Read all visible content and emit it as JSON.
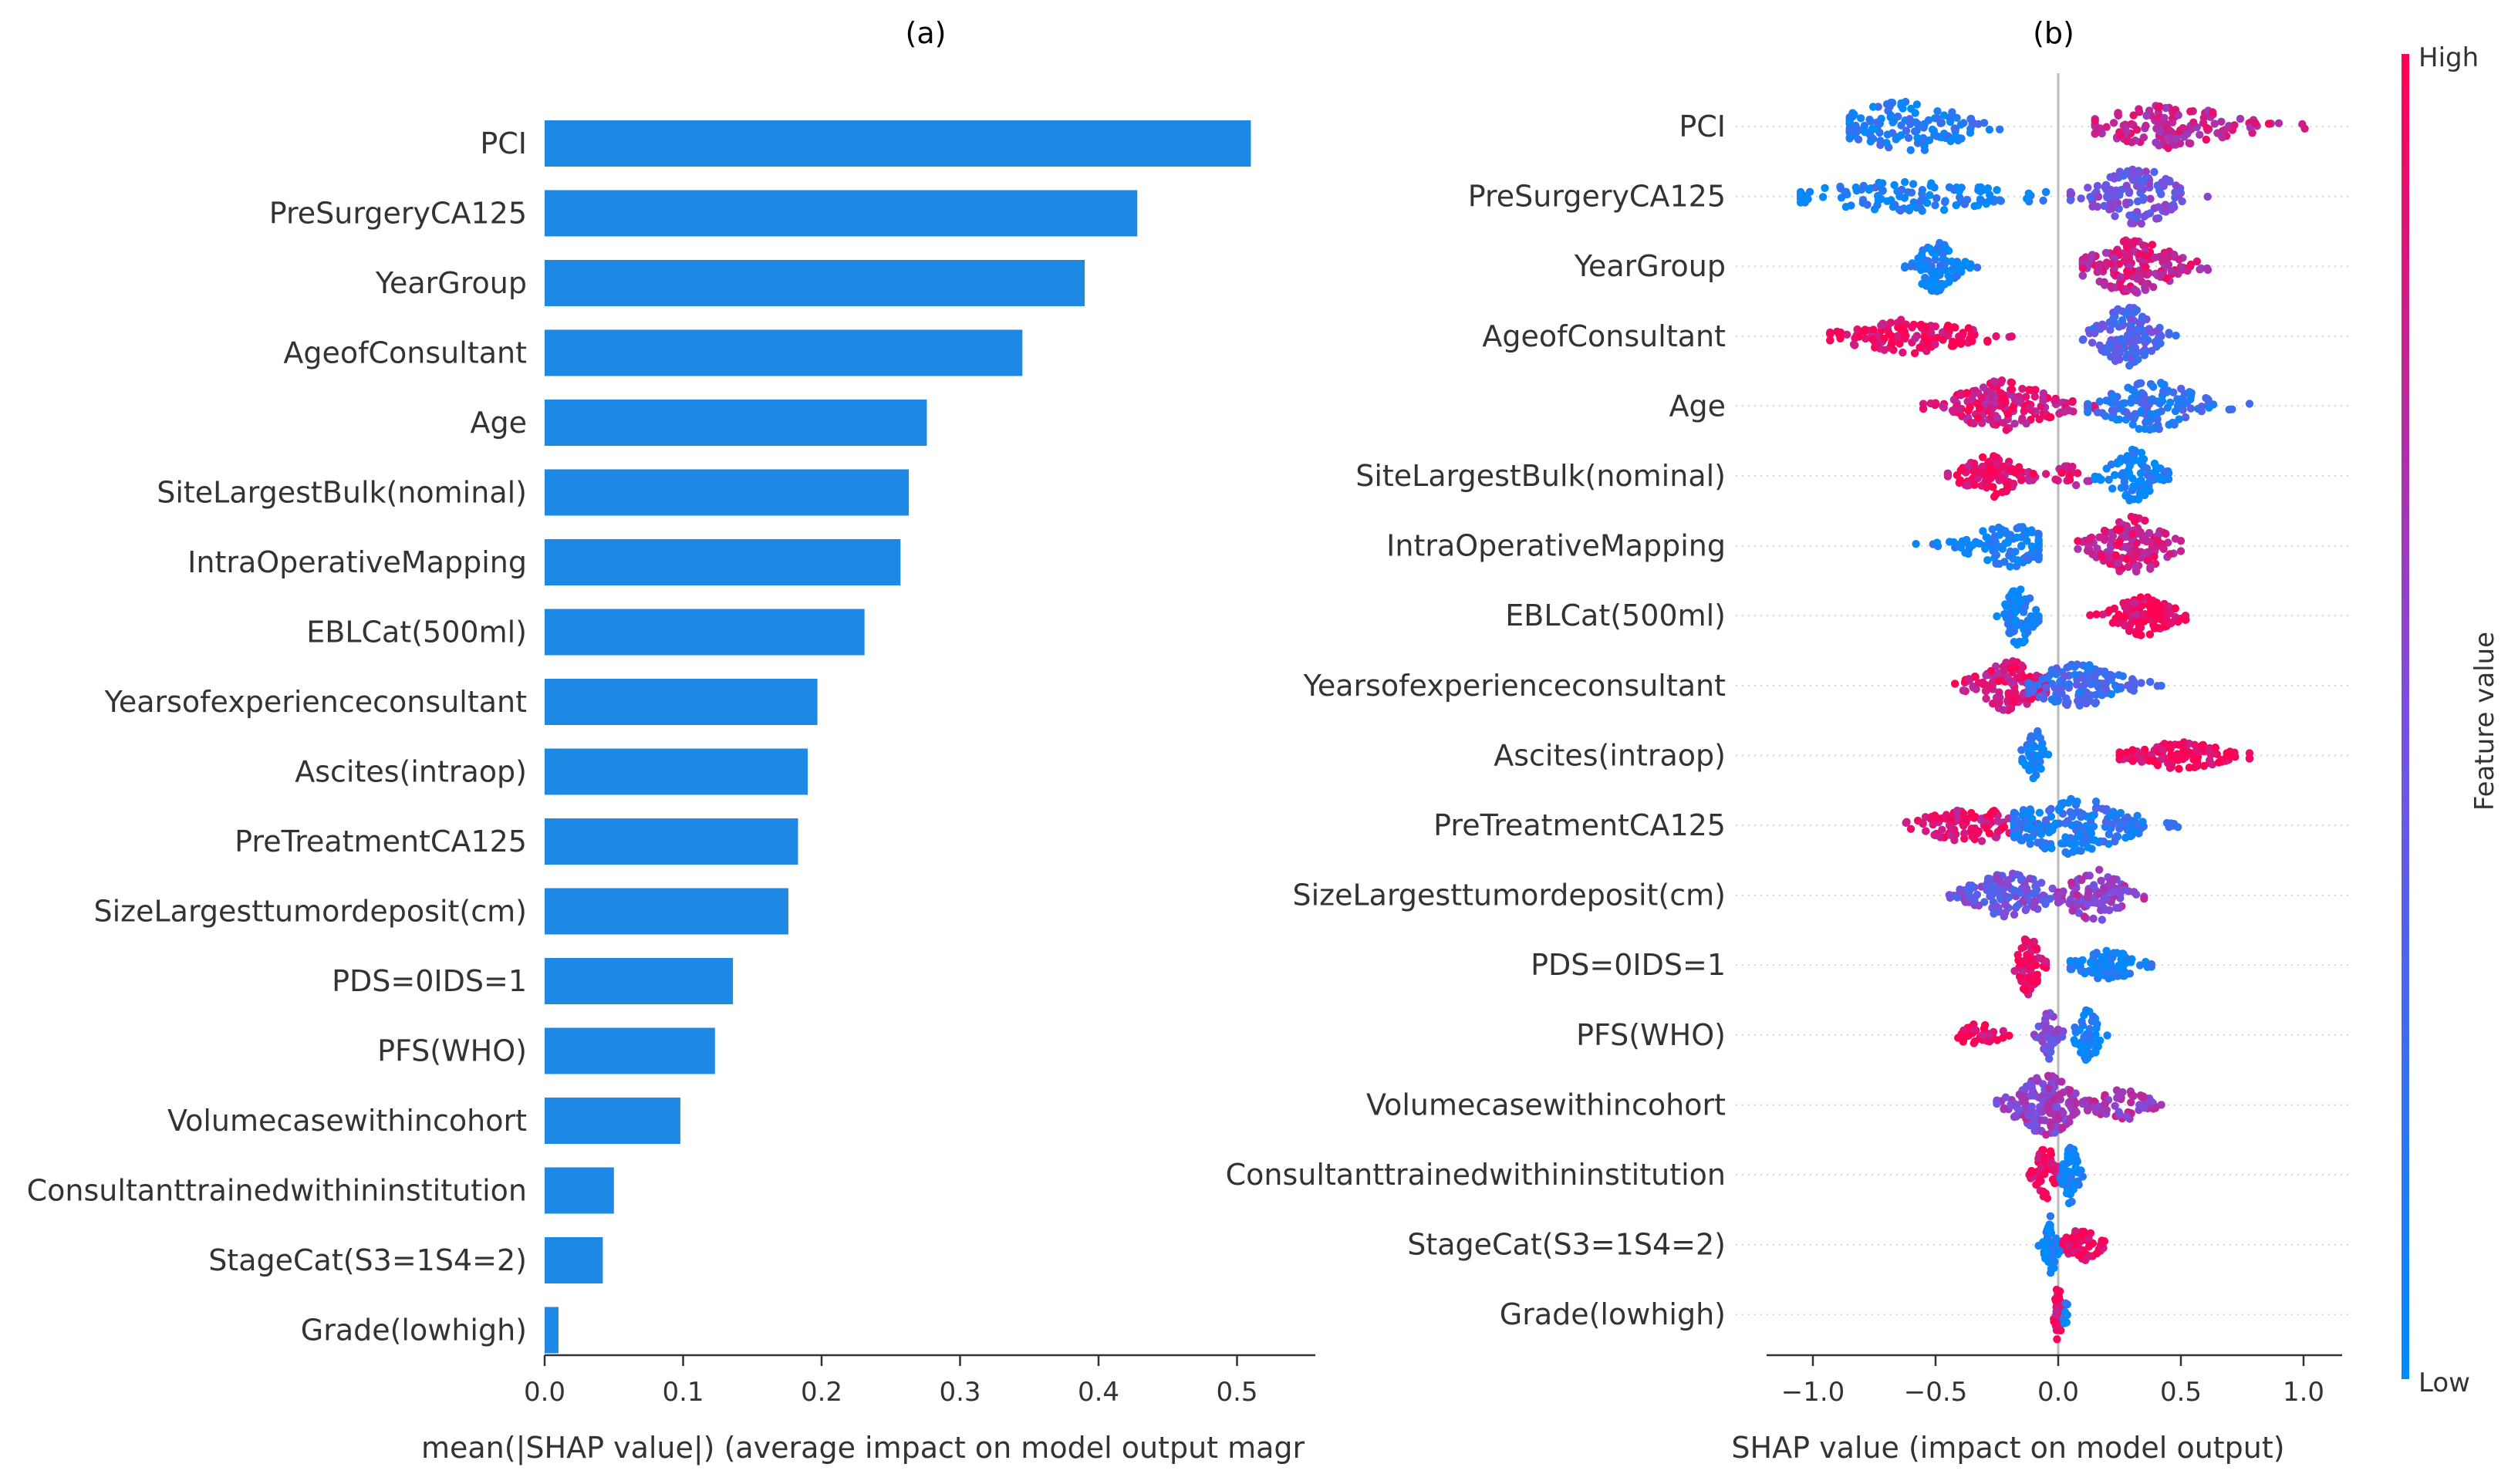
{
  "chart_data": [
    {
      "type": "bar",
      "orientation": "horizontal",
      "title": "(a)",
      "xlabel": "mean(|SHAP value|) (average impact on model output magr",
      "ylabel": "",
      "xlim": [
        0,
        0.56
      ],
      "xticks": [
        "0.0",
        "0.1",
        "0.2",
        "0.3",
        "0.4",
        "0.5"
      ],
      "bar_color": "#1E88E5",
      "categories": [
        "PCI",
        "PreSurgeryCA125",
        "YearGroup",
        "AgeofConsultant",
        "Age",
        "SiteLargestBulk(nominal)",
        "IntraOperativeMapping",
        "EBLCat(500ml)",
        "Yearsofexperienceconsultant",
        "Ascites(intraop)",
        "PreTreatmentCA125",
        "SizeLargesttumordeposit(cm)",
        "PDS=0IDS=1",
        "PFS(WHO)",
        "Volumecasewithincohort",
        "Consultanttrainedwithininstitution",
        "StageCat(S3=1S4=2)",
        "Grade(lowhigh)"
      ],
      "values": [
        0.51,
        0.428,
        0.39,
        0.345,
        0.276,
        0.263,
        0.257,
        0.231,
        0.197,
        0.19,
        0.183,
        0.176,
        0.136,
        0.123,
        0.098,
        0.05,
        0.042,
        0.01
      ]
    },
    {
      "type": "scatter",
      "subtype": "beeswarm",
      "title": "(b)",
      "xlabel": "SHAP value (impact on model output)",
      "ylabel": "",
      "xlim": [
        -1.15,
        1.12
      ],
      "xticks": [
        "−1.0",
        "−0.5",
        "0.0",
        "0.5",
        "1.0"
      ],
      "xtick_values": [
        -1.0,
        -0.5,
        0.0,
        0.5,
        1.0
      ],
      "grid": false,
      "colorbar": {
        "label": "Feature value",
        "high_label": "High",
        "low_label": "Low",
        "high_color": "#FF0052",
        "low_color": "#008BFB"
      },
      "features": [
        {
          "name": "PCI",
          "clusters": [
            {
              "min": -0.85,
              "max": 0.08,
              "center": -0.62,
              "spread": 0.18,
              "n": 130,
              "width": 0.85,
              "value": 0.12
            },
            {
              "min": 0.15,
              "max": 1.12,
              "center": 0.45,
              "spread": 0.2,
              "n": 150,
              "width": 0.7,
              "value": 0.78
            }
          ]
        },
        {
          "name": "PreSurgeryCA125",
          "clusters": [
            {
              "min": -1.05,
              "max": -0.05,
              "center": -0.6,
              "spread": 0.3,
              "n": 120,
              "width": 0.45,
              "value": 0.08
            },
            {
              "min": 0.05,
              "max": 0.85,
              "center": 0.32,
              "spread": 0.12,
              "n": 130,
              "width": 0.95,
              "value": 0.45
            }
          ]
        },
        {
          "name": "YearGroup",
          "clusters": [
            {
              "min": -0.72,
              "max": -0.33,
              "center": -0.5,
              "spread": 0.06,
              "n": 90,
              "width": 0.85,
              "value": 0.05
            },
            {
              "min": 0.1,
              "max": 0.62,
              "center": 0.3,
              "spread": 0.13,
              "n": 170,
              "width": 0.9,
              "value": 0.8
            }
          ]
        },
        {
          "name": "AgeofConsultant",
          "clusters": [
            {
              "min": -0.93,
              "max": -0.15,
              "center": -0.6,
              "spread": 0.18,
              "n": 130,
              "width": 0.55,
              "value": 0.93
            },
            {
              "min": 0.1,
              "max": 0.48,
              "center": 0.28,
              "spread": 0.08,
              "n": 130,
              "width": 1.0,
              "value": 0.35
            }
          ]
        },
        {
          "name": "Age",
          "clusters": [
            {
              "min": -0.55,
              "max": 0.15,
              "center": -0.22,
              "spread": 0.14,
              "n": 170,
              "width": 0.85,
              "value": 0.85
            },
            {
              "min": 0.12,
              "max": 0.78,
              "center": 0.38,
              "spread": 0.14,
              "n": 140,
              "width": 0.8,
              "value": 0.2
            }
          ]
        },
        {
          "name": "SiteLargestBulk(nominal)",
          "clusters": [
            {
              "min": -0.45,
              "max": -0.05,
              "center": -0.27,
              "spread": 0.08,
              "n": 100,
              "width": 0.7,
              "value": 0.9
            },
            {
              "min": -0.05,
              "max": 0.15,
              "center": 0.05,
              "spread": 0.06,
              "n": 20,
              "width": 0.3,
              "value": 0.85
            },
            {
              "min": 0.15,
              "max": 0.45,
              "center": 0.3,
              "spread": 0.07,
              "n": 90,
              "width": 0.9,
              "value": 0.05
            }
          ]
        },
        {
          "name": "IntraOperativeMapping",
          "clusters": [
            {
              "min": -0.58,
              "max": -0.08,
              "center": -0.2,
              "spread": 0.12,
              "n": 110,
              "width": 0.7,
              "value": 0.1
            },
            {
              "min": 0.08,
              "max": 0.5,
              "center": 0.3,
              "spread": 0.1,
              "n": 150,
              "width": 1.0,
              "value": 0.82
            }
          ]
        },
        {
          "name": "EBLCat(500ml)",
          "clusters": [
            {
              "min": -0.25,
              "max": -0.08,
              "center": -0.16,
              "spread": 0.04,
              "n": 80,
              "width": 1.0,
              "value": 0.05
            },
            {
              "min": 0.13,
              "max": 0.52,
              "center": 0.35,
              "spread": 0.08,
              "n": 110,
              "width": 0.65,
              "value": 0.93
            }
          ]
        },
        {
          "name": "Yearsofexperienceconsultant",
          "clusters": [
            {
              "min": -0.45,
              "max": -0.05,
              "center": -0.2,
              "spread": 0.09,
              "n": 130,
              "width": 0.85,
              "value": 0.88
            },
            {
              "min": -0.12,
              "max": 0.42,
              "center": 0.08,
              "spread": 0.13,
              "n": 140,
              "width": 0.7,
              "value": 0.25
            }
          ]
        },
        {
          "name": "Ascites(intraop)",
          "clusters": [
            {
              "min": -0.15,
              "max": -0.04,
              "center": -0.1,
              "spread": 0.025,
              "n": 50,
              "width": 1.0,
              "value": 0.05
            },
            {
              "min": 0.25,
              "max": 0.78,
              "center": 0.5,
              "spread": 0.13,
              "n": 110,
              "width": 0.4,
              "value": 0.95
            }
          ]
        },
        {
          "name": "PreTreatmentCA125",
          "clusters": [
            {
              "min": -0.62,
              "max": -0.05,
              "center": -0.35,
              "spread": 0.14,
              "n": 120,
              "width": 0.55,
              "value": 0.9
            },
            {
              "min": -0.18,
              "max": 0.68,
              "center": 0.05,
              "spread": 0.17,
              "n": 200,
              "width": 0.95,
              "value": 0.15
            }
          ]
        },
        {
          "name": "SizeLargesttumordeposit(cm)",
          "clusters": [
            {
              "min": -0.48,
              "max": 0.02,
              "center": -0.2,
              "spread": 0.12,
              "n": 130,
              "width": 0.7,
              "value": 0.45
            },
            {
              "min": 0.0,
              "max": 0.35,
              "center": 0.15,
              "spread": 0.09,
              "n": 100,
              "width": 0.85,
              "value": 0.6
            }
          ]
        },
        {
          "name": "PDS=0IDS=1",
          "clusters": [
            {
              "min": -0.2,
              "max": -0.05,
              "center": -0.12,
              "spread": 0.03,
              "n": 70,
              "width": 1.0,
              "value": 0.95
            },
            {
              "min": 0.05,
              "max": 0.38,
              "center": 0.2,
              "spread": 0.08,
              "n": 90,
              "width": 0.45,
              "value": 0.06
            }
          ]
        },
        {
          "name": "PFS(WHO)",
          "clusters": [
            {
              "min": -0.45,
              "max": -0.2,
              "center": -0.33,
              "spread": 0.06,
              "n": 40,
              "width": 0.35,
              "value": 0.95
            },
            {
              "min": -0.1,
              "max": 0.02,
              "center": -0.04,
              "spread": 0.025,
              "n": 45,
              "width": 0.8,
              "value": 0.5
            },
            {
              "min": 0.05,
              "max": 0.2,
              "center": 0.12,
              "spread": 0.03,
              "n": 50,
              "width": 1.0,
              "value": 0.05
            }
          ]
        },
        {
          "name": "Volumecasewithincohort",
          "clusters": [
            {
              "min": -0.25,
              "max": 0.15,
              "center": -0.05,
              "spread": 0.09,
              "n": 170,
              "width": 1.0,
              "value": 0.6
            },
            {
              "min": 0.1,
              "max": 0.42,
              "center": 0.25,
              "spread": 0.08,
              "n": 60,
              "width": 0.5,
              "value": 0.65
            }
          ]
        },
        {
          "name": "Consultanttrainedwithininstitution",
          "clusters": [
            {
              "min": -0.12,
              "max": 0.0,
              "center": -0.05,
              "spread": 0.03,
              "n": 60,
              "width": 1.0,
              "value": 0.95
            },
            {
              "min": 0.0,
              "max": 0.1,
              "center": 0.05,
              "spread": 0.025,
              "n": 60,
              "width": 1.0,
              "value": 0.05
            }
          ]
        },
        {
          "name": "StageCat(S3=1S4=2)",
          "clusters": [
            {
              "min": -0.08,
              "max": 0.02,
              "center": -0.03,
              "spread": 0.02,
              "n": 50,
              "width": 1.0,
              "value": 0.05
            },
            {
              "min": 0.02,
              "max": 0.22,
              "center": 0.1,
              "spread": 0.05,
              "n": 60,
              "width": 0.5,
              "value": 0.95
            }
          ]
        },
        {
          "name": "Grade(lowhigh)",
          "clusters": [
            {
              "min": -0.02,
              "max": 0.02,
              "center": 0.0,
              "spread": 0.01,
              "n": 40,
              "width": 1.0,
              "value": 0.95
            },
            {
              "min": 0.02,
              "max": 0.06,
              "center": 0.03,
              "spread": 0.01,
              "n": 8,
              "width": 0.4,
              "value": 0.05
            }
          ]
        }
      ]
    }
  ]
}
